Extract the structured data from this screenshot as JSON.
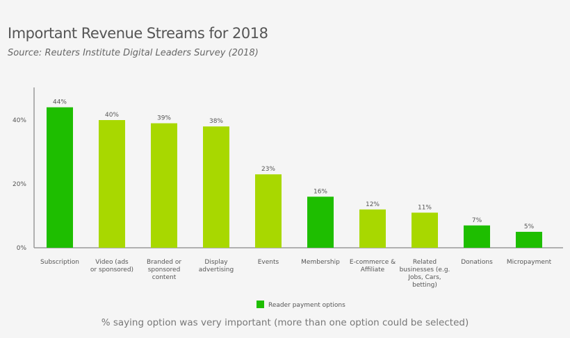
{
  "chart_data": {
    "type": "bar",
    "title": "Important Revenue Streams for 2018",
    "subtitle": "Source: Reuters Institute Digital Leaders Survey (2018)",
    "categories": [
      "Subscription",
      "Video (ads or sponsored)",
      "Branded or sponsored content",
      "Display advertising",
      "Events",
      "Membership",
      "E-commerce & Affiliate",
      "Related businesses (e.g. Jobs, Cars, betting)",
      "Donations",
      "Micropayment"
    ],
    "category_lines": [
      [
        "Subscription"
      ],
      [
        "Video (ads",
        "or sponsored)"
      ],
      [
        "Branded or",
        "sponsored",
        "content"
      ],
      [
        "Display",
        "advertising"
      ],
      [
        "Events"
      ],
      [
        "Membership"
      ],
      [
        "E-commerce &",
        "Affiliate"
      ],
      [
        "Related",
        "businesses (e.g.",
        "Jobs, Cars,",
        "betting)"
      ],
      [
        "Donations"
      ],
      [
        "Micropayment"
      ]
    ],
    "values": [
      44,
      40,
      39,
      38,
      23,
      16,
      12,
      11,
      7,
      5
    ],
    "data_labels": [
      "44%",
      "40%",
      "39%",
      "38%",
      "23%",
      "16%",
      "12%",
      "11%",
      "7%",
      "5%"
    ],
    "reader_payment": [
      true,
      false,
      false,
      false,
      false,
      true,
      false,
      false,
      true,
      true
    ],
    "ylim": [
      0,
      50
    ],
    "yticks": [
      0,
      20,
      40
    ],
    "ytick_labels": [
      "0%",
      "20%",
      "40%"
    ],
    "grid": false,
    "legend": {
      "placement": "bottom",
      "entries": [
        {
          "name": "Reader payment options",
          "color": "#1ebe00"
        }
      ]
    },
    "colors": {
      "reader_payment": "#1ebe00",
      "other": "#a8d800"
    },
    "footnote": "% saying option was very important (more than one option could be selected)"
  }
}
